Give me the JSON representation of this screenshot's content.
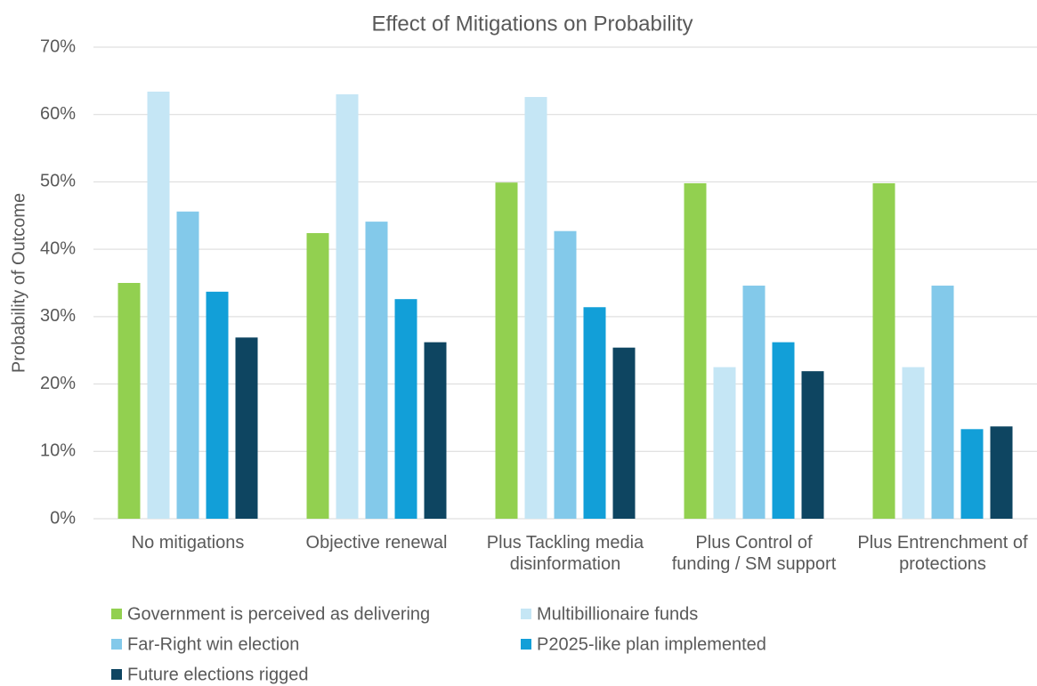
{
  "chart_data": {
    "type": "bar",
    "title": "Effect of Mitigations on Probability",
    "y_label": "Probability of Outcome",
    "categories": [
      "No mitigations",
      "Objective renewal",
      "Plus Tackling media disinformation",
      "Plus Control of funding / SM support",
      "Plus Entrenchment of protections"
    ],
    "series": [
      {
        "name": "Government is perceived as delivering",
        "color": "#92d050",
        "values": [
          35.0,
          42.4,
          49.9,
          49.8,
          49.8
        ]
      },
      {
        "name": "Multibillionaire funds",
        "color": "#c5e6f5",
        "values": [
          63.4,
          63.0,
          62.6,
          22.5,
          22.5
        ]
      },
      {
        "name": "Far-Right win election",
        "color": "#83c9ea",
        "values": [
          45.6,
          44.1,
          42.7,
          34.6,
          34.6
        ]
      },
      {
        "name": "P2025-like plan implemented",
        "color": "#129fd8",
        "values": [
          33.7,
          32.6,
          31.4,
          26.2,
          13.3
        ]
      },
      {
        "name": "Future elections rigged",
        "color": "#0e4561",
        "values": [
          26.9,
          26.2,
          25.4,
          21.9,
          13.7
        ]
      }
    ],
    "ylim": [
      0,
      70
    ],
    "yticks": [
      {
        "value": 0,
        "label": "0%"
      },
      {
        "value": 10,
        "label": "10%"
      },
      {
        "value": 20,
        "label": "20%"
      },
      {
        "value": 30,
        "label": "30%"
      },
      {
        "value": 40,
        "label": "40%"
      },
      {
        "value": 50,
        "label": "50%"
      },
      {
        "value": 60,
        "label": "60%"
      },
      {
        "value": 70,
        "label": "70%"
      }
    ],
    "grid": true
  }
}
